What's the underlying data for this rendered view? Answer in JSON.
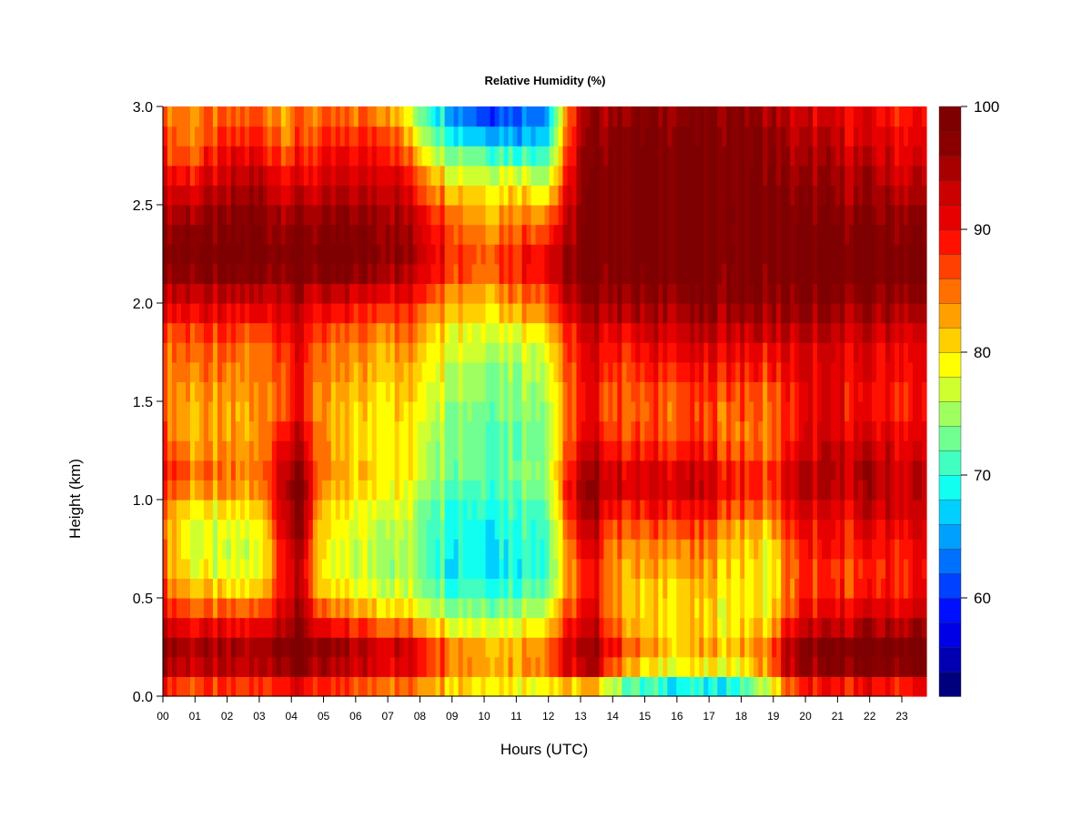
{
  "chart_data": {
    "type": "heatmap",
    "title": "Relative Humidity (%)",
    "xlabel": "Hours (UTC)",
    "ylabel": "Height (km)",
    "xlim": [
      0,
      23.85
    ],
    "ylim": [
      0,
      3.0
    ],
    "x_ticks": [
      "00",
      "01",
      "02",
      "03",
      "04",
      "05",
      "06",
      "07",
      "08",
      "09",
      "10",
      "11",
      "12",
      "13",
      "14",
      "15",
      "16",
      "17",
      "18",
      "19",
      "20",
      "21",
      "22",
      "23"
    ],
    "y_ticks": [
      "0.0",
      "0.5",
      "1.0",
      "1.5",
      "2.0",
      "2.5",
      "3.0"
    ],
    "colorbar": {
      "range": [
        52,
        100
      ],
      "ticks": [
        "60",
        "70",
        "80",
        "90",
        "100"
      ],
      "levels": 24,
      "colors": [
        "#00007f",
        "#0000b2",
        "#0000e6",
        "#0010ff",
        "#0040ff",
        "#0070ff",
        "#00a0ff",
        "#00d0ff",
        "#10fff0",
        "#40ffc0",
        "#70ff90",
        "#a0ff60",
        "#d0ff30",
        "#ffff00",
        "#ffd000",
        "#ffa000",
        "#ff7000",
        "#ff4000",
        "#ff1000",
        "#e60000",
        "#cc0000",
        "#a80000",
        "#8a0000",
        "#7f0000"
      ]
    },
    "x_hours": [
      0,
      1,
      2,
      3,
      3.8,
      4.4,
      5,
      6,
      7,
      8,
      9,
      10,
      11,
      12,
      13,
      13.6,
      14,
      15,
      16,
      17,
      18,
      19,
      19.5,
      20,
      21,
      22,
      23,
      23.85
    ],
    "y_heights_km": [
      0.0,
      0.1,
      0.25,
      0.4,
      0.6,
      0.8,
      1.0,
      1.1,
      1.3,
      1.5,
      1.8,
      2.0,
      2.2,
      2.4,
      2.6,
      2.8,
      3.0
    ],
    "rh_percent": [
      [
        83,
        94,
        97,
        91,
        86,
        84,
        86,
        90,
        87,
        85,
        86,
        92,
        99,
        97,
        92,
        87,
        86
      ],
      [
        82,
        92,
        95,
        88,
        79,
        77,
        80,
        86,
        82,
        83,
        86,
        92,
        99,
        97,
        91,
        85,
        84
      ],
      [
        82,
        92,
        94,
        87,
        77,
        76,
        80,
        85,
        82,
        82,
        85,
        91,
        99,
        97,
        93,
        89,
        84
      ],
      [
        82,
        93,
        95,
        88,
        78,
        77,
        81,
        85,
        83,
        83,
        85,
        92,
        99,
        98,
        95,
        90,
        85
      ],
      [
        84,
        97,
        99,
        95,
        91,
        93,
        96,
        96,
        92,
        88,
        90,
        94,
        99,
        97,
        92,
        86,
        84
      ],
      [
        84,
        97,
        99,
        95,
        92,
        95,
        97,
        98,
        93,
        89,
        90,
        94,
        99,
        97,
        92,
        87,
        85
      ],
      [
        82,
        93,
        95,
        86,
        77,
        78,
        80,
        83,
        82,
        82,
        84,
        90,
        99,
        96,
        92,
        88,
        84
      ],
      [
        81,
        92,
        94,
        85,
        77,
        77,
        79,
        82,
        80,
        81,
        84,
        90,
        99,
        97,
        93,
        89,
        84
      ],
      [
        80,
        92,
        93,
        83,
        76,
        77,
        79,
        81,
        80,
        81,
        84,
        90,
        98,
        97,
        94,
        90,
        84
      ],
      [
        80,
        90,
        91,
        80,
        74,
        74,
        76,
        78,
        78,
        80,
        83,
        88,
        95,
        93,
        88,
        80,
        73
      ],
      [
        78,
        86,
        86,
        77,
        70,
        70,
        72,
        74,
        75,
        76,
        79,
        84,
        90,
        88,
        82,
        72,
        64
      ],
      [
        77,
        84,
        83,
        76,
        69,
        69,
        71,
        73,
        73,
        74,
        77,
        82,
        87,
        84,
        80,
        70,
        59
      ],
      [
        76,
        84,
        82,
        76,
        70,
        70,
        72,
        74,
        73,
        74,
        77,
        84,
        91,
        85,
        81,
        68,
        60
      ],
      [
        74,
        86,
        86,
        80,
        72,
        72,
        74,
        76,
        75,
        76,
        80,
        87,
        93,
        87,
        78,
        70,
        64
      ],
      [
        70,
        92,
        94,
        90,
        86,
        90,
        94,
        95,
        90,
        88,
        90,
        94,
        98,
        96,
        96,
        94,
        92
      ],
      [
        70,
        93,
        95,
        92,
        88,
        92,
        95,
        96,
        92,
        89,
        92,
        96,
        99,
        99,
        98,
        97,
        96
      ],
      [
        67,
        86,
        90,
        85,
        84,
        86,
        92,
        94,
        88,
        86,
        90,
        96,
        99,
        99,
        99,
        98,
        96
      ],
      [
        63,
        78,
        83,
        80,
        81,
        84,
        90,
        92,
        87,
        85,
        90,
        96,
        99,
        99,
        99,
        99,
        97
      ],
      [
        62,
        78,
        82,
        80,
        82,
        85,
        92,
        94,
        88,
        86,
        92,
        97,
        99,
        99,
        99,
        99,
        97
      ],
      [
        60,
        77,
        82,
        80,
        82,
        84,
        91,
        93,
        87,
        86,
        92,
        97,
        99,
        99,
        99,
        98,
        97
      ],
      [
        62,
        78,
        82,
        79,
        80,
        82,
        88,
        90,
        85,
        86,
        92,
        97,
        99,
        99,
        99,
        99,
        97
      ],
      [
        72,
        84,
        85,
        80,
        78,
        80,
        86,
        89,
        84,
        85,
        91,
        97,
        99,
        99,
        98,
        97,
        95
      ],
      [
        78,
        92,
        94,
        86,
        84,
        86,
        90,
        92,
        88,
        88,
        92,
        97,
        99,
        99,
        97,
        95,
        93
      ],
      [
        81,
        95,
        96,
        90,
        87,
        89,
        93,
        94,
        91,
        90,
        92,
        97,
        99,
        98,
        96,
        94,
        92
      ],
      [
        82,
        96,
        98,
        91,
        87,
        89,
        92,
        94,
        92,
        90,
        92,
        96,
        99,
        98,
        95,
        93,
        91
      ],
      [
        82,
        97,
        99,
        92,
        87,
        90,
        93,
        95,
        92,
        89,
        91,
        96,
        99,
        98,
        95,
        92,
        90
      ],
      [
        82,
        97,
        99,
        93,
        88,
        90,
        93,
        94,
        91,
        89,
        91,
        96,
        99,
        97,
        94,
        91,
        89
      ],
      [
        83,
        98,
        99,
        94,
        89,
        91,
        93,
        94,
        91,
        89,
        91,
        96,
        99,
        97,
        94,
        91,
        89
      ]
    ]
  }
}
